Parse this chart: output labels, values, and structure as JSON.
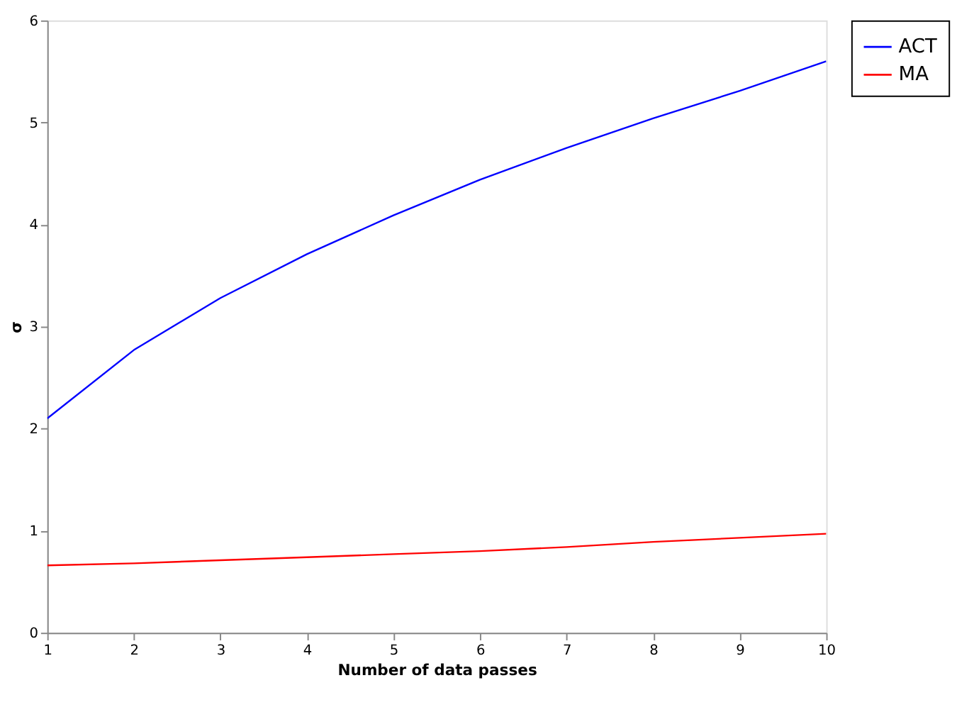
{
  "chart_data": {
    "type": "line",
    "xlabel": "Number of data passes",
    "ylabel": "σ",
    "x": [
      1,
      2,
      3,
      4,
      5,
      6,
      7,
      8,
      9,
      10
    ],
    "series": [
      {
        "name": "ACT",
        "color": "#0000ff",
        "values": [
          2.1,
          2.77,
          3.28,
          3.71,
          4.09,
          4.44,
          4.75,
          5.04,
          5.31,
          5.6
        ]
      },
      {
        "name": "MA",
        "color": "#ff0000",
        "values": [
          0.66,
          0.68,
          0.71,
          0.74,
          0.77,
          0.8,
          0.84,
          0.89,
          0.93,
          0.97
        ]
      }
    ],
    "xlim": [
      1,
      10
    ],
    "xticks": [
      1,
      2,
      3,
      4,
      5,
      6,
      7,
      8,
      9,
      10
    ],
    "ylim": [
      0,
      6
    ],
    "yticks": [
      0,
      1,
      2,
      3,
      4,
      5,
      6
    ],
    "grid": false,
    "legend": "top right",
    "marker": "none",
    "line_style": "solid"
  }
}
